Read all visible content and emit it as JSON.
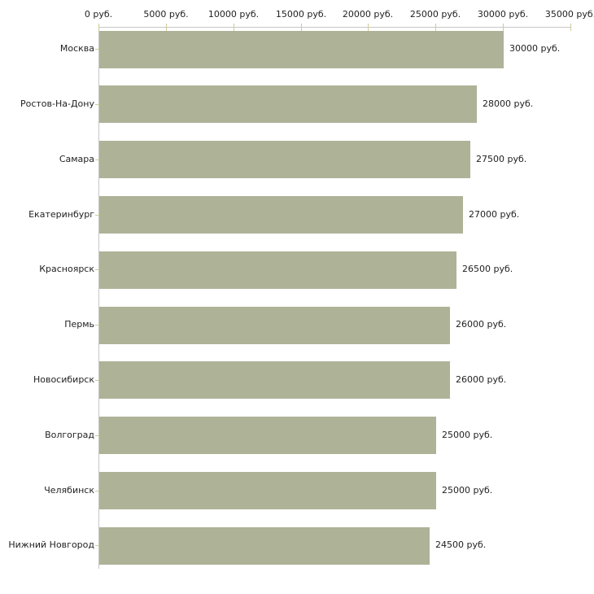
{
  "chart_data": {
    "type": "bar",
    "orientation": "horizontal",
    "title": "",
    "xlabel": "",
    "ylabel": "",
    "xlim": [
      0,
      35000
    ],
    "grid": false,
    "legend": false,
    "categories": [
      "Москва",
      "Ростов-На-Дону",
      "Самара",
      "Екатеринбург",
      "Красноярск",
      "Пермь",
      "Новосибирск",
      "Волгоград",
      "Челябинск",
      "Нижний Новгород"
    ],
    "values": [
      30000,
      28000,
      27500,
      27000,
      26500,
      26000,
      26000,
      25000,
      25000,
      24500
    ],
    "value_labels": [
      "30000 руб.",
      "28000 руб.",
      "27500 руб.",
      "27000 руб.",
      "26500 руб.",
      "26000 руб.",
      "26000 руб.",
      "25000 руб.",
      "25000 руб.",
      "24500 руб."
    ],
    "x_ticks": [
      0,
      5000,
      10000,
      15000,
      20000,
      25000,
      30000,
      35000
    ],
    "x_tick_labels": [
      "0 руб.",
      "5000 руб.",
      "10000 руб.",
      "15000 руб.",
      "20000 руб.",
      "25000 руб.",
      "30000 руб.",
      "35000 руб."
    ],
    "colors": {
      "bar": "#aeb398",
      "axis_line": "#c6c6c6",
      "tick": "#cccc99",
      "text": "#1f1f1f",
      "background": "#ffffff"
    }
  }
}
